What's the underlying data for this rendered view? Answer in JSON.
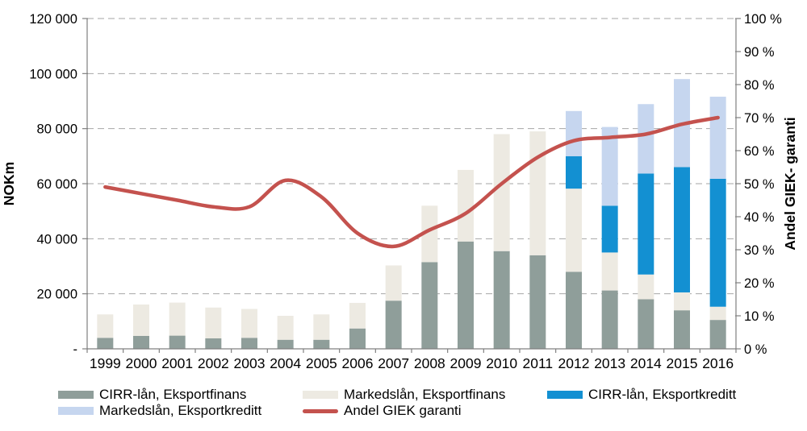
{
  "page": {
    "background": "#FFFFFF"
  },
  "chart_data": {
    "type": "bar",
    "variant": "stacked-columns-with-smooth-line",
    "title": "",
    "categories": [
      "1999",
      "2000",
      "2001",
      "2002",
      "2003",
      "2004",
      "2005",
      "2006",
      "2007",
      "2008",
      "2009",
      "2010",
      "2011",
      "2012",
      "2013",
      "2014",
      "2015",
      "2016"
    ],
    "series": [
      {
        "name": "CIRR-lån, Eksportfinans",
        "color": "#8F9E9A",
        "values": [
          4000,
          4700,
          4800,
          3800,
          4000,
          3300,
          3300,
          7400,
          17500,
          31500,
          39000,
          35500,
          34000,
          28000,
          21200,
          18000,
          14000,
          10500
        ]
      },
      {
        "name": "Markedslån, Eksportfinans",
        "color": "#EDEAE2",
        "values": [
          8500,
          11400,
          12000,
          11200,
          10500,
          8700,
          9200,
          9300,
          12800,
          20500,
          26000,
          42500,
          45000,
          30200,
          13800,
          9000,
          6500,
          4800
        ]
      },
      {
        "name": "CIRR-lån, Eksportkreditt",
        "color": "#1390D2",
        "values": [
          0,
          0,
          0,
          0,
          0,
          0,
          0,
          0,
          0,
          0,
          0,
          0,
          0,
          11800,
          17000,
          36700,
          45500,
          46500
        ]
      },
      {
        "name": "Markedslån, Eksportkreditt",
        "color": "#C6D6EF",
        "values": [
          0,
          0,
          0,
          0,
          0,
          0,
          0,
          0,
          0,
          0,
          0,
          0,
          0,
          16400,
          28600,
          25200,
          32000,
          29800
        ]
      }
    ],
    "line_series": {
      "name": "Andel GIEK garanti",
      "color": "#C4524E",
      "axis": "right",
      "values_percent": [
        49,
        47,
        45,
        43,
        43,
        51,
        46,
        35,
        31,
        36,
        41,
        50,
        58,
        63,
        64,
        65,
        68,
        70
      ]
    },
    "left_axis": {
      "title": "NOKm",
      "min": 0,
      "max": 120000,
      "tick_step": 20000,
      "tick_labels": [
        "-",
        "20 000",
        "40 000",
        "60 000",
        "80 000",
        "100 000",
        "120 000"
      ]
    },
    "right_axis": {
      "title": "Andel GIEK- garanti",
      "min": 0,
      "max": 100,
      "tick_step": 10,
      "tick_labels": [
        "0 %",
        "10 %",
        "20 %",
        "30 %",
        "40 %",
        "50 %",
        "60 %",
        "70 %",
        "80 %",
        "90 %",
        "100 %"
      ]
    },
    "gridlines": {
      "style": "dashed",
      "color": "#A6A6A6"
    },
    "axis_line_color": "#808080",
    "legend_position": "bottom"
  },
  "legend": {
    "items": [
      {
        "label": "CIRR-lån, Eksportfinans",
        "swatch": "rect",
        "color": "#8F9E9A"
      },
      {
        "label": "Markedslån, Eksportfinans",
        "swatch": "rect",
        "color": "#EDEAE2"
      },
      {
        "label": "CIRR-lån, Eksportkreditt",
        "swatch": "rect",
        "color": "#1390D2"
      },
      {
        "label": "Markedslån, Eksportkreditt",
        "swatch": "rect",
        "color": "#C6D6EF"
      },
      {
        "label": "Andel GIEK garanti",
        "swatch": "line",
        "color": "#C4524E"
      }
    ]
  }
}
